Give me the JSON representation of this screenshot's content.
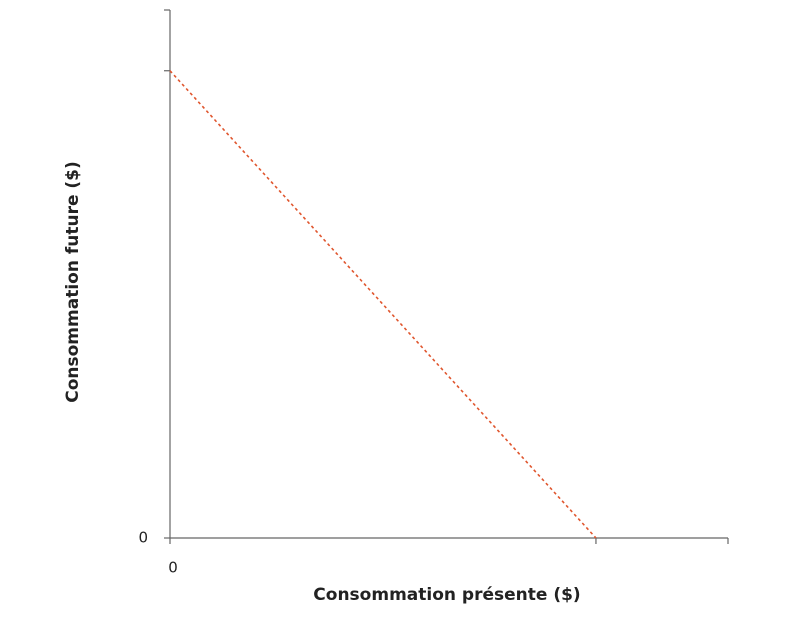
{
  "chart_data": {
    "type": "line",
    "x_label": "Consommation présente ($)",
    "y_label": "Consommation future ($)",
    "x": [
      0,
      100
    ],
    "series": [
      {
        "values": [
          100,
          0
        ],
        "color": "#e0562e"
      }
    ],
    "xlim": [
      0,
      131
    ],
    "ylim": [
      0,
      113
    ],
    "xticks": [
      0
    ],
    "yticks": [
      0
    ],
    "dashed": true
  }
}
